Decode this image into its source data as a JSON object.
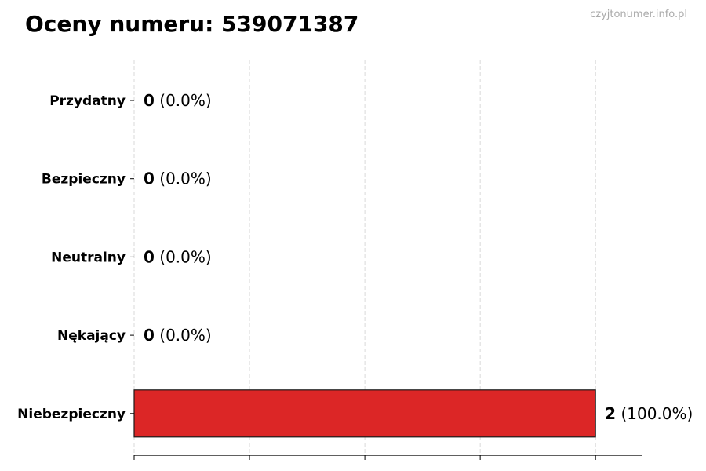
{
  "watermark": "czyjtonumer.info.pl",
  "chart_data": {
    "type": "bar",
    "orientation": "horizontal",
    "title": "Oceny numeru: 539071387",
    "categories": [
      "Przydatny",
      "Bezpieczny",
      "Neutralny",
      "Nękający",
      "Niebezpieczny"
    ],
    "values": [
      0,
      0,
      0,
      0,
      2
    ],
    "percent_labels": [
      "(0.0%)",
      "(0.0%)",
      "(0.0%)",
      "(0.0%)",
      "(100.0%)"
    ],
    "bar_color": "#dc2626",
    "edge_color": "#1a1a1a",
    "xlim": [
      0,
      2.2
    ],
    "x_gridlines": [
      0,
      0.5,
      1,
      1.5,
      2
    ],
    "grid": true,
    "x_tick_labels_shown": false
  }
}
